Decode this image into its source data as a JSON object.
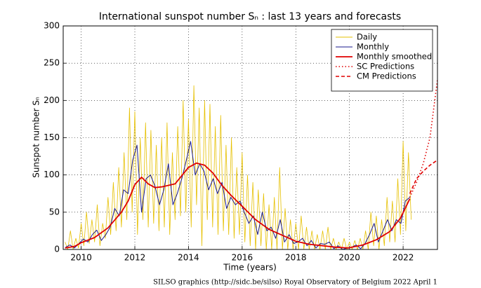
{
  "chart_data": {
    "type": "line",
    "title": "International sunspot number Sₙ : last 13 years and forecasts",
    "x_label": "Time (years)",
    "y_label": "Sunspot number Sₙ",
    "footer": "SILSO graphics (http://sidc.be/silso)  Royal Observatory of Belgium  2022 April 1",
    "xlim": [
      2009.33,
      2023.28
    ],
    "ylim": [
      0,
      300
    ],
    "xticks": [
      2010,
      2012,
      2014,
      2016,
      2018,
      2020,
      2022
    ],
    "yticks": [
      0,
      50,
      100,
      150,
      200,
      250,
      300
    ],
    "grid": true,
    "legend": "upper right",
    "series": [
      {
        "name": "Daily",
        "color": "#e6c000",
        "linestyle": "solid",
        "x": [
          2009.4,
          2009.5,
          2009.6,
          2009.7,
          2009.8,
          2009.9,
          2010.0,
          2010.1,
          2010.2,
          2010.3,
          2010.4,
          2010.5,
          2010.6,
          2010.7,
          2010.8,
          2010.9,
          2011.0,
          2011.1,
          2011.2,
          2011.3,
          2011.4,
          2011.5,
          2011.6,
          2011.7,
          2011.8,
          2011.9,
          2012.0,
          2012.1,
          2012.2,
          2012.3,
          2012.4,
          2012.5,
          2012.6,
          2012.7,
          2012.8,
          2012.9,
          2013.0,
          2013.1,
          2013.2,
          2013.3,
          2013.4,
          2013.5,
          2013.6,
          2013.7,
          2013.8,
          2013.9,
          2014.0,
          2014.1,
          2014.2,
          2014.3,
          2014.4,
          2014.5,
          2014.6,
          2014.7,
          2014.8,
          2014.9,
          2015.0,
          2015.1,
          2015.2,
          2015.3,
          2015.4,
          2015.5,
          2015.6,
          2015.7,
          2015.8,
          2015.9,
          2016.0,
          2016.1,
          2016.2,
          2016.3,
          2016.4,
          2016.5,
          2016.6,
          2016.7,
          2016.8,
          2016.9,
          2017.0,
          2017.1,
          2017.2,
          2017.3,
          2017.4,
          2017.5,
          2017.6,
          2017.7,
          2017.8,
          2017.9,
          2018.0,
          2018.1,
          2018.2,
          2018.3,
          2018.4,
          2018.5,
          2018.6,
          2018.7,
          2018.8,
          2018.9,
          2019.0,
          2019.1,
          2019.2,
          2019.3,
          2019.4,
          2019.5,
          2019.6,
          2019.7,
          2019.8,
          2019.9,
          2020.0,
          2020.1,
          2020.2,
          2020.3,
          2020.4,
          2020.5,
          2020.6,
          2020.7,
          2020.8,
          2020.9,
          2021.0,
          2021.1,
          2021.2,
          2021.3,
          2021.4,
          2021.5,
          2021.6,
          2021.7,
          2021.8,
          2021.9,
          2022.0,
          2022.1,
          2022.2,
          2022.3
        ],
        "values": [
          10,
          0,
          25,
          0,
          15,
          2,
          35,
          5,
          50,
          8,
          40,
          10,
          60,
          5,
          35,
          15,
          70,
          20,
          90,
          25,
          110,
          30,
          130,
          40,
          190,
          50,
          185,
          20,
          150,
          40,
          170,
          30,
          160,
          35,
          140,
          25,
          150,
          30,
          170,
          20,
          130,
          40,
          165,
          45,
          200,
          50,
          175,
          30,
          220,
          60,
          190,
          5,
          200,
          40,
          195,
          30,
          165,
          20,
          180,
          25,
          140,
          20,
          150,
          15,
          110,
          20,
          130,
          10,
          100,
          5,
          90,
          0,
          80,
          5,
          75,
          0,
          60,
          0,
          70,
          0,
          110,
          0,
          55,
          0,
          40,
          0,
          35,
          0,
          45,
          0,
          30,
          0,
          25,
          0,
          20,
          0,
          25,
          0,
          30,
          0,
          15,
          0,
          10,
          0,
          15,
          0,
          10,
          0,
          12,
          0,
          15,
          0,
          25,
          0,
          50,
          5,
          45,
          0,
          40,
          5,
          70,
          10,
          65,
          10,
          95,
          20,
          145,
          25,
          130,
          40
        ]
      },
      {
        "name": "Monthly",
        "color": "#1a1a8c",
        "linestyle": "solid",
        "x": [
          2009.42,
          2009.58,
          2009.75,
          2009.92,
          2010.08,
          2010.25,
          2010.42,
          2010.58,
          2010.75,
          2010.92,
          2011.08,
          2011.25,
          2011.42,
          2011.58,
          2011.75,
          2011.92,
          2012.08,
          2012.25,
          2012.42,
          2012.58,
          2012.75,
          2012.92,
          2013.08,
          2013.25,
          2013.42,
          2013.58,
          2013.75,
          2013.92,
          2014.08,
          2014.25,
          2014.42,
          2014.58,
          2014.75,
          2014.92,
          2015.08,
          2015.25,
          2015.42,
          2015.58,
          2015.75,
          2015.92,
          2016.08,
          2016.25,
          2016.42,
          2016.58,
          2016.75,
          2016.92,
          2017.08,
          2017.25,
          2017.42,
          2017.58,
          2017.75,
          2017.92,
          2018.08,
          2018.25,
          2018.42,
          2018.58,
          2018.75,
          2018.92,
          2019.08,
          2019.25,
          2019.42,
          2019.58,
          2019.75,
          2019.92,
          2020.08,
          2020.25,
          2020.42,
          2020.58,
          2020.75,
          2020.92,
          2021.08,
          2021.25,
          2021.42,
          2021.58,
          2021.75,
          2021.92,
          2022.08,
          2022.25
        ],
        "values": [
          3,
          6,
          2,
          8,
          14,
          10,
          20,
          26,
          12,
          20,
          30,
          55,
          45,
          80,
          75,
          120,
          140,
          50,
          95,
          100,
          85,
          60,
          80,
          115,
          60,
          75,
          95,
          120,
          145,
          100,
          115,
          105,
          80,
          95,
          75,
          90,
          55,
          70,
          60,
          65,
          50,
          35,
          45,
          20,
          50,
          25,
          30,
          15,
          40,
          10,
          20,
          8,
          10,
          15,
          5,
          12,
          2,
          8,
          7,
          10,
          1,
          5,
          0,
          2,
          3,
          6,
          1,
          8,
          20,
          35,
          10,
          25,
          40,
          25,
          40,
          35,
          65,
          70
        ]
      },
      {
        "name": "Monthly smoothed",
        "color": "#e00000",
        "linestyle": "solid",
        "x": [
          2009.4,
          2009.75,
          2010.0,
          2010.5,
          2011.0,
          2011.5,
          2011.75,
          2012.0,
          2012.25,
          2012.5,
          2012.75,
          2013.0,
          2013.5,
          2013.75,
          2014.0,
          2014.3,
          2014.6,
          2014.9,
          2015.25,
          2015.6,
          2016.0,
          2016.5,
          2017.0,
          2017.5,
          2018.0,
          2018.5,
          2019.0,
          2019.5,
          2019.95,
          2020.5,
          2021.0,
          2021.5,
          2021.9,
          2022.25
        ],
        "values": [
          2,
          4,
          9,
          16,
          29,
          50,
          65,
          87,
          97,
          88,
          83,
          84,
          88,
          99,
          110,
          116,
          113,
          103,
          86,
          72,
          58,
          40,
          27,
          19,
          11,
          7,
          5,
          3,
          2,
          6,
          13,
          24,
          42,
          68
        ]
      },
      {
        "name": "SC Predictions",
        "color": "#e00000",
        "linestyle": "dotted",
        "x": [
          2022.25,
          2022.5,
          2022.75,
          2023.0,
          2023.28
        ],
        "values": [
          70,
          90,
          115,
          150,
          228
        ]
      },
      {
        "name": "CM Predictions",
        "color": "#e00000",
        "linestyle": "dashed",
        "x": [
          2022.25,
          2022.5,
          2022.75,
          2023.0,
          2023.28
        ],
        "values": [
          75,
          95,
          105,
          113,
          120
        ]
      }
    ]
  }
}
